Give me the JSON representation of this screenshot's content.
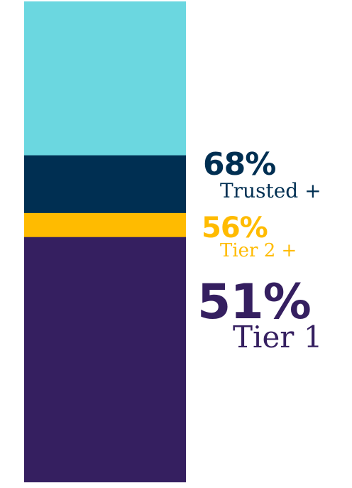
{
  "chart_data": {
    "type": "bar",
    "stacked": true,
    "ylim": [
      0,
      100
    ],
    "segments": [
      {
        "name": "Tier 1",
        "percent_label": "51%",
        "value": 51,
        "color": "#351f60"
      },
      {
        "name": "Tier 2 +",
        "percent_label": "56%",
        "value": 56,
        "color": "#ffbb00"
      },
      {
        "name": "Trusted +",
        "percent_label": "68%",
        "value": 68,
        "color": "#002f52"
      },
      {
        "name": "",
        "percent_label": "",
        "value": 100,
        "color": "#6bd7e0"
      }
    ],
    "legend": "right"
  }
}
